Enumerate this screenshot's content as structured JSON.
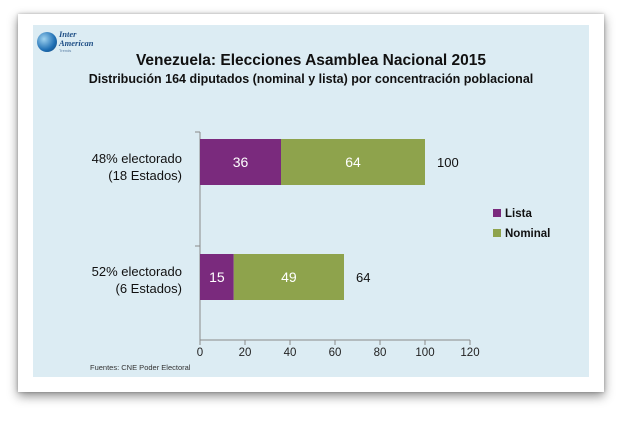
{
  "logo": {
    "line1": "Inter",
    "line2": "American",
    "sub": "Trends"
  },
  "title": "Venezuela: Elecciones Asamblea Nacional 2015",
  "subtitle": "Distribución 164 diputados (nominal y lista) por concentración poblacional",
  "source": "Fuentes: CNE Poder Electoral",
  "chart_data": {
    "type": "bar",
    "orientation": "horizontal",
    "stacked": true,
    "categories": [
      [
        "48% electorado",
        "(18 Estados)"
      ],
      [
        "52% electorado",
        "(6 Estados)"
      ]
    ],
    "series": [
      {
        "name": "Lista",
        "values": [
          36,
          15
        ],
        "color": "#7a2a7d"
      },
      {
        "name": "Nominal",
        "values": [
          64,
          49
        ],
        "color": "#8ea34c"
      }
    ],
    "totals": [
      100,
      64
    ],
    "xlim": [
      0,
      120
    ],
    "xticks": [
      0,
      20,
      40,
      60,
      80,
      100,
      120
    ],
    "grid": false,
    "legend": "right"
  }
}
